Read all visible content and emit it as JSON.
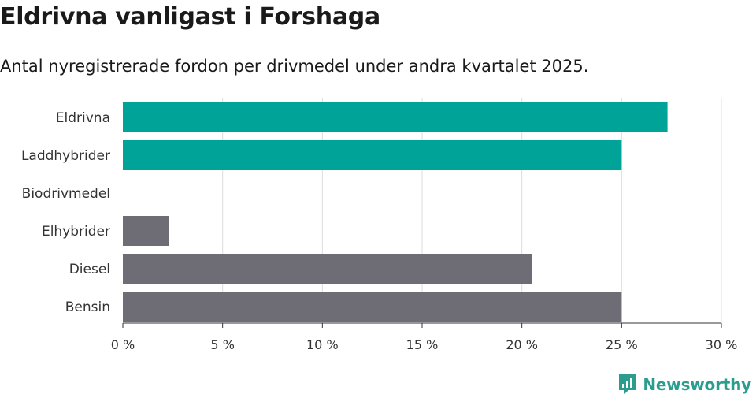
{
  "header": {
    "title": "Eldrivna vanligast i Forshaga",
    "subtitle": "Antal nyregistrerade fordon per drivmedel under andra kvartalet 2025."
  },
  "brand": {
    "name": "Newsworthy",
    "color": "#2a9d8f"
  },
  "chart_data": {
    "type": "bar",
    "orientation": "horizontal",
    "categories": [
      "Eldrivna",
      "Laddhybrider",
      "Biodrivmedel",
      "Elhybrider",
      "Diesel",
      "Bensin"
    ],
    "values": [
      27.3,
      25.0,
      0,
      2.3,
      20.5,
      25.0
    ],
    "colors": [
      "#00a398",
      "#00a398",
      "#00a398",
      "#6e6d75",
      "#6e6d75",
      "#6e6d75"
    ],
    "xlim": [
      0,
      30
    ],
    "xticks": [
      0,
      5,
      10,
      15,
      20,
      25,
      30
    ],
    "xtick_labels": [
      "0 %",
      "5 %",
      "10 %",
      "15 %",
      "20 %",
      "25 %",
      "30 %"
    ],
    "grid": true,
    "legend": "none"
  }
}
